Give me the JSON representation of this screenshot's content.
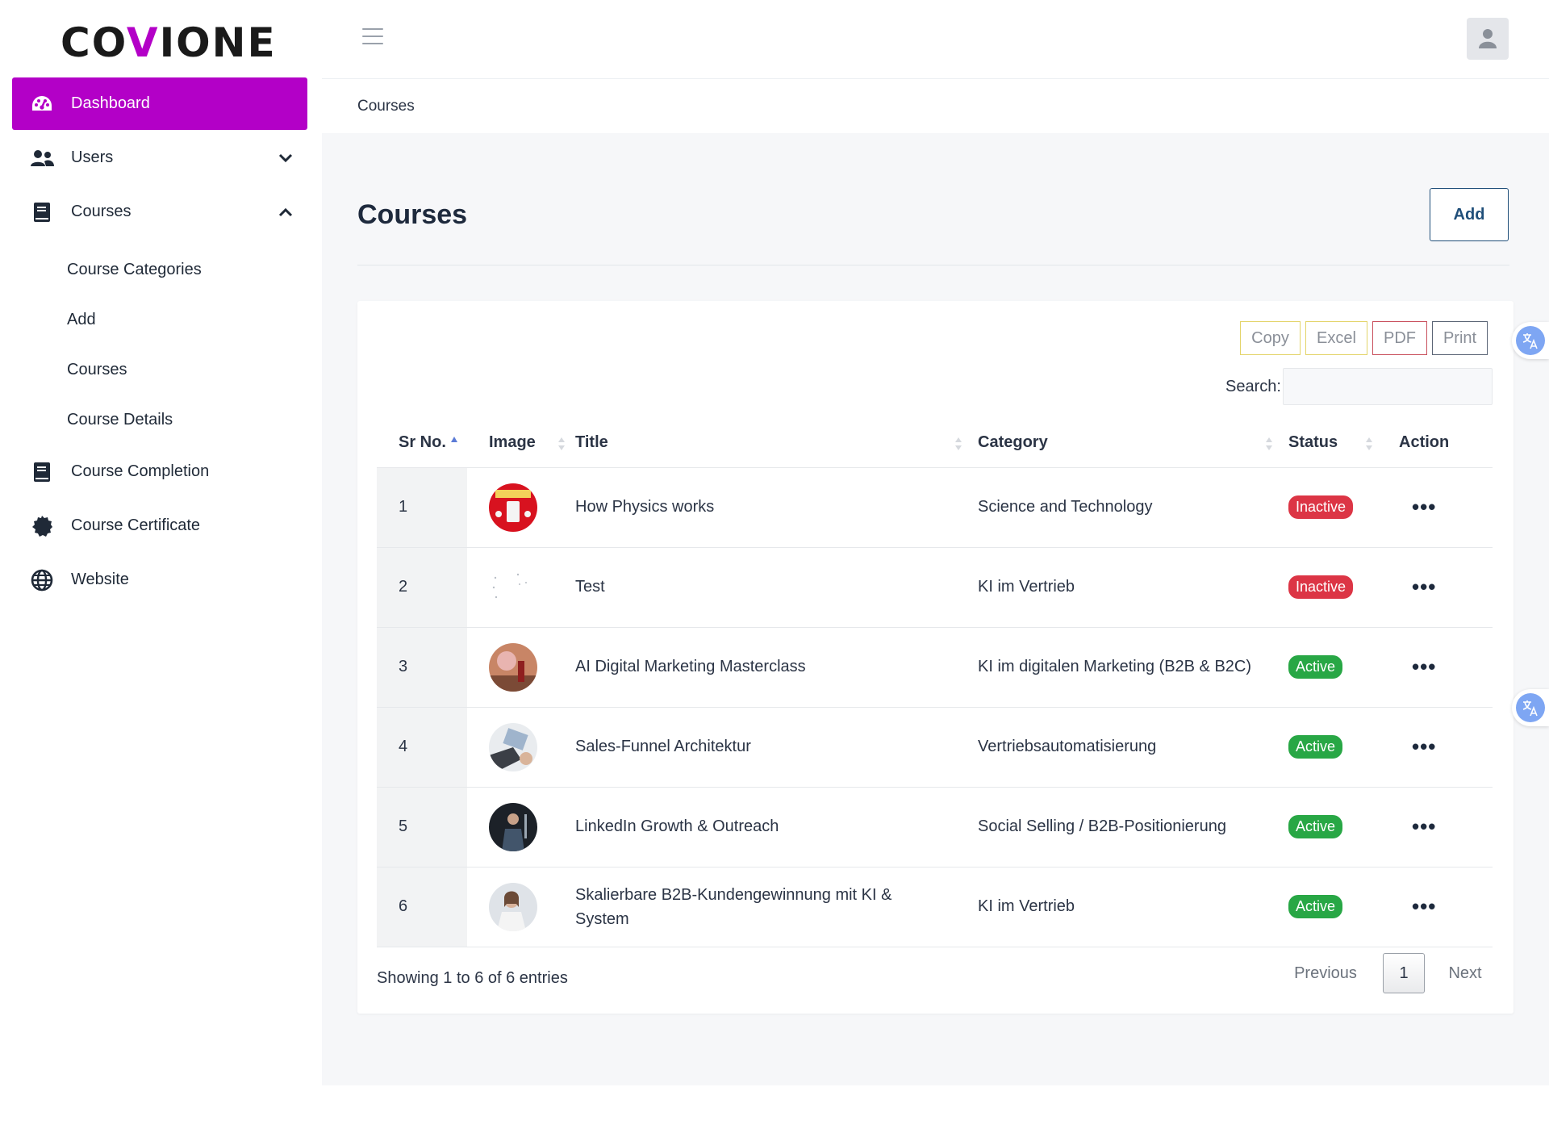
{
  "brand": {
    "left": "CO",
    "v": "V",
    "right": "IONE"
  },
  "sidebar": {
    "items": [
      {
        "label": "Dashboard",
        "icon": "dashboard-icon"
      },
      {
        "label": "Users",
        "icon": "users-icon"
      },
      {
        "label": "Courses",
        "icon": "book-icon"
      },
      {
        "label": "Course Completion",
        "icon": "book-icon"
      },
      {
        "label": "Course Certificate",
        "icon": "certificate-icon"
      },
      {
        "label": "Website",
        "icon": "globe-icon"
      }
    ],
    "course_sub": [
      "Course Categories",
      "Add",
      "Courses",
      "Course Details"
    ]
  },
  "breadcrumb": "Courses",
  "page": {
    "title": "Courses",
    "add_label": "Add"
  },
  "exports": [
    "Copy",
    "Excel",
    "PDF",
    "Print"
  ],
  "search": {
    "label": "Search:",
    "value": ""
  },
  "table": {
    "headers": [
      "Sr No.",
      "Image",
      "Title",
      "Category",
      "Status",
      "Action"
    ],
    "rows": [
      {
        "sr": "1",
        "title": "How Physics works",
        "category": "Science and Technology",
        "status": "Inactive"
      },
      {
        "sr": "2",
        "title": "Test",
        "category": "KI im Vertrieb",
        "status": "Inactive"
      },
      {
        "sr": "3",
        "title": "AI Digital Marketing Masterclass",
        "category": "KI im digitalen Marketing (B2B & B2C)",
        "status": "Active"
      },
      {
        "sr": "4",
        "title": "Sales-Funnel Architektur",
        "category": "Vertriebsautomatisierung",
        "status": "Active"
      },
      {
        "sr": "5",
        "title": "LinkedIn Growth & Outreach",
        "category": "Social Selling / B2B-Positionierung",
        "status": "Active"
      },
      {
        "sr": "6",
        "title": "Skalierbare B2B-Kundengewinnung mit KI & System",
        "category": "KI im Vertrieb",
        "status": "Active"
      }
    ],
    "action_glyph": "•••"
  },
  "footer": {
    "info": "Showing 1 to 6 of 6 entries",
    "previous": "Previous",
    "current": "1",
    "next": "Next"
  },
  "colors": {
    "accent": "#b300c7",
    "inactive": "#dc3545",
    "active": "#28a745",
    "button": "#1f4e79"
  }
}
